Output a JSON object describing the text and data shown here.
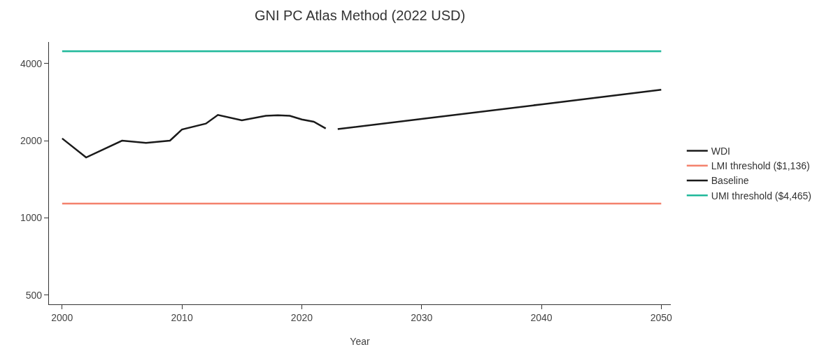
{
  "chart_data": {
    "type": "line",
    "title": "GNI PC Atlas Method (2022 USD)",
    "xlabel": "Year",
    "series": [
      {
        "name": "WDI",
        "color": "#1a1a1a",
        "x": [
          2000,
          2002,
          2005,
          2007,
          2009,
          2010,
          2012,
          2013,
          2015,
          2017,
          2018,
          2019,
          2020,
          2021,
          2022
        ],
        "values": [
          2040,
          1720,
          2000,
          1960,
          2000,
          2210,
          2330,
          2520,
          2400,
          2500,
          2510,
          2500,
          2420,
          2370,
          2230
        ]
      },
      {
        "name": "LMI threshold ($1,136)",
        "color": "#f4816c",
        "x": [
          2000,
          2050
        ],
        "values": [
          1136,
          1136
        ]
      },
      {
        "name": "Baseline",
        "color": "#1a1a1a",
        "x": [
          2023,
          2030,
          2040,
          2050
        ],
        "values": [
          2220,
          2430,
          2770,
          3160
        ]
      },
      {
        "name": "UMI threshold ($4,465)",
        "color": "#1fb89a",
        "x": [
          2000,
          2050
        ],
        "values": [
          4465,
          4465
        ]
      }
    ],
    "log": "y",
    "xlim": [
      1998.9,
      2050.8
    ],
    "ylim": [
      460,
      4850
    ],
    "xticks": [
      2000,
      2010,
      2020,
      2030,
      2040,
      2050
    ],
    "yticks": [
      500,
      1000,
      2000,
      4000
    ],
    "legend": "right",
    "marker": "none",
    "line_style": "solid"
  }
}
